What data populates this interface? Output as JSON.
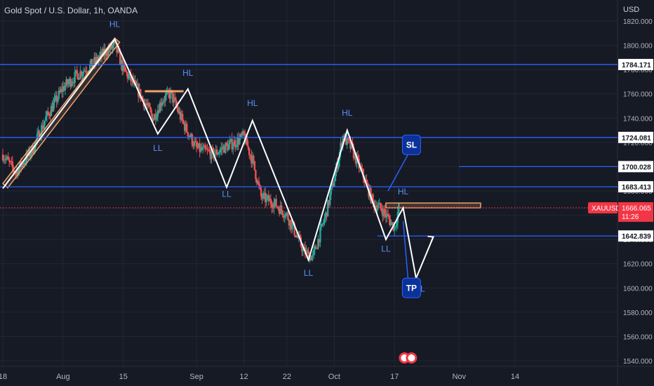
{
  "header": {
    "title": "Gold Spot / U.S. Dollar, 1h, OANDA",
    "currency": "USD"
  },
  "colors": {
    "background": "#161a25",
    "grid": "#242733",
    "text": "#b2b5be",
    "blue_line": "#2962ff",
    "up": "#26a69a",
    "down": "#ef5350",
    "zigzag": "#ffffff",
    "channel": "#f0a36b",
    "bubble": "#0c3299",
    "price_tag": "#f23645"
  },
  "chart_data": {
    "type": "candlestick",
    "symbol": "XAUUSD",
    "ylim": [
      1532,
      1825
    ],
    "y_ticks": [
      1540,
      1560,
      1580,
      1600,
      1620,
      1640,
      1660,
      1680,
      1700,
      1720,
      1740,
      1760,
      1780,
      1800,
      1820
    ],
    "y_tick_labels": [
      "1540.000",
      "1560.000",
      "1580.000",
      "1600.000",
      "1620.000",
      "1640.000",
      "1660.000",
      "1680.000",
      "1700.000",
      "1720.000",
      "1740.000",
      "1760.000",
      "1780.000",
      "1800.000",
      "1820.000"
    ],
    "x_axis": {
      "labels": [
        "18",
        "Aug",
        "15",
        "Sep",
        "12",
        "22",
        "Oct",
        "17",
        "Nov",
        "14"
      ],
      "dates": [
        "2022-07-18",
        "2022-08-01",
        "2022-08-15",
        "2022-09-01",
        "2022-09-12",
        "2022-09-22",
        "2022-10-03",
        "2022-10-17",
        "2022-11-01",
        "2022-11-14"
      ]
    },
    "price_path": [
      [
        "2022-07-18",
        1710
      ],
      [
        "2022-07-21",
        1695
      ],
      [
        "2022-07-25",
        1715
      ],
      [
        "2022-07-28",
        1740
      ],
      [
        "2022-08-01",
        1765
      ],
      [
        "2022-08-04",
        1775
      ],
      [
        "2022-08-08",
        1785
      ],
      [
        "2022-08-11",
        1795
      ],
      [
        "2022-08-13",
        1800
      ],
      [
        "2022-08-15",
        1780
      ],
      [
        "2022-08-18",
        1765
      ],
      [
        "2022-08-22",
        1740
      ],
      [
        "2022-08-24",
        1755
      ],
      [
        "2022-08-26",
        1760
      ],
      [
        "2022-08-29",
        1735
      ],
      [
        "2022-09-01",
        1715
      ],
      [
        "2022-09-05",
        1710
      ],
      [
        "2022-09-07",
        1715
      ],
      [
        "2022-09-10",
        1720
      ],
      [
        "2022-09-12",
        1725
      ],
      [
        "2022-09-14",
        1705
      ],
      [
        "2022-09-16",
        1675
      ],
      [
        "2022-09-19",
        1670
      ],
      [
        "2022-09-22",
        1660
      ],
      [
        "2022-09-26",
        1630
      ],
      [
        "2022-09-28",
        1625
      ],
      [
        "2022-10-01",
        1660
      ],
      [
        "2022-10-03",
        1690
      ],
      [
        "2022-10-05",
        1725
      ],
      [
        "2022-10-07",
        1715
      ],
      [
        "2022-10-10",
        1690
      ],
      [
        "2022-10-12",
        1670
      ],
      [
        "2022-10-14",
        1665
      ],
      [
        "2022-10-17",
        1650
      ],
      [
        "2022-10-18",
        1666
      ]
    ],
    "horizontal_levels": [
      {
        "value": 1784.171,
        "label": "1784.171"
      },
      {
        "value": 1724.081,
        "label": "1724.081"
      },
      {
        "value": 1683.413,
        "label": "1683.413"
      },
      {
        "value": 1700.028,
        "label": "1700.028",
        "partial": true
      },
      {
        "value": 1642.839,
        "label": "1642.839",
        "partial": true
      }
    ],
    "current_price": {
      "symbol": "XAUUSD",
      "value": 1666.065,
      "label": "1666.065",
      "countdown": "11:26"
    },
    "zigzag": [
      [
        "2022-07-18",
        1682
      ],
      [
        "2022-08-13",
        1805
      ],
      [
        "2022-08-23",
        1727
      ],
      [
        "2022-08-30",
        1764
      ],
      [
        "2022-09-08",
        1683
      ],
      [
        "2022-09-14",
        1738
      ],
      [
        "2022-09-27",
        1623
      ],
      [
        "2022-10-06",
        1730
      ],
      [
        "2022-10-15",
        1640
      ],
      [
        "2022-10-19",
        1666
      ],
      [
        "2022-10-22",
        1608
      ],
      [
        "2022-10-26",
        1642
      ]
    ],
    "annotations": [
      {
        "text": "HL",
        "date": "2022-08-13",
        "value": 1815
      },
      {
        "text": "HL",
        "date": "2022-08-30",
        "value": 1775
      },
      {
        "text": "LL",
        "date": "2022-08-23",
        "value": 1713
      },
      {
        "text": "HL",
        "date": "2022-09-14",
        "value": 1750
      },
      {
        "text": "LL",
        "date": "2022-09-08",
        "value": 1675
      },
      {
        "text": "HL",
        "date": "2022-10-06",
        "value": 1742
      },
      {
        "text": "LL",
        "date": "2022-09-27",
        "value": 1610
      },
      {
        "text": "HL",
        "date": "2022-10-19",
        "value": 1677
      },
      {
        "text": "LL",
        "date": "2022-10-15",
        "value": 1630
      },
      {
        "text": "LL",
        "date": "2022-10-23",
        "value": 1597
      }
    ],
    "bubbles": [
      {
        "text": "SL",
        "date": "2022-10-18",
        "value": 1718
      },
      {
        "text": "TP",
        "date": "2022-10-18",
        "value": 1600
      }
    ]
  }
}
